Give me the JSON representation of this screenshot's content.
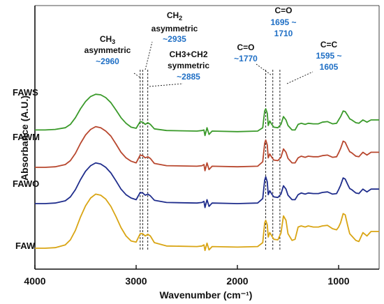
{
  "chart_data": {
    "type": "line",
    "xlabel": "Wavenumber (cm⁻¹)",
    "ylabel": "Absorbance (A.U.)",
    "xlim": [
      4000,
      600
    ],
    "x_ticks": [
      {
        "value": 4000,
        "label": "4000"
      },
      {
        "value": 3000,
        "label": "3000"
      },
      {
        "value": 2000,
        "label": "2000"
      },
      {
        "value": 1000,
        "label": "1000"
      }
    ],
    "grid": false,
    "series": [
      {
        "name": "FAWS",
        "color": "#3a9a2a",
        "points": [
          [
            4000,
            2.12
          ],
          [
            3900,
            2.12
          ],
          [
            3800,
            2.13
          ],
          [
            3700,
            2.16
          ],
          [
            3650,
            2.22
          ],
          [
            3600,
            2.34
          ],
          [
            3550,
            2.5
          ],
          [
            3500,
            2.63
          ],
          [
            3450,
            2.72
          ],
          [
            3400,
            2.76
          ],
          [
            3350,
            2.75
          ],
          [
            3300,
            2.7
          ],
          [
            3250,
            2.61
          ],
          [
            3200,
            2.48
          ],
          [
            3150,
            2.34
          ],
          [
            3100,
            2.24
          ],
          [
            3050,
            2.17
          ],
          [
            3000,
            2.15
          ],
          [
            2960,
            2.27
          ],
          [
            2935,
            2.26
          ],
          [
            2910,
            2.22
          ],
          [
            2885,
            2.25
          ],
          [
            2860,
            2.22
          ],
          [
            2820,
            2.14
          ],
          [
            2700,
            2.11
          ],
          [
            2400,
            2.1
          ],
          [
            2350,
            2.11
          ],
          [
            2330,
            2.12
          ],
          [
            2320,
            2.02
          ],
          [
            2300,
            2.16
          ],
          [
            2280,
            2.04
          ],
          [
            2250,
            2.1
          ],
          [
            2000,
            2.09
          ],
          [
            1800,
            2.1
          ],
          [
            1750,
            2.16
          ],
          [
            1730,
            2.46
          ],
          [
            1720,
            2.5
          ],
          [
            1705,
            2.42
          ],
          [
            1695,
            2.2
          ],
          [
            1680,
            2.28
          ],
          [
            1660,
            2.22
          ],
          [
            1640,
            2.17
          ],
          [
            1600,
            2.16
          ],
          [
            1570,
            2.22
          ],
          [
            1545,
            2.36
          ],
          [
            1520,
            2.3
          ],
          [
            1500,
            2.2
          ],
          [
            1460,
            2.12
          ],
          [
            1430,
            2.12
          ],
          [
            1400,
            2.22
          ],
          [
            1370,
            2.24
          ],
          [
            1330,
            2.22
          ],
          [
            1300,
            2.24
          ],
          [
            1250,
            2.23
          ],
          [
            1200,
            2.23
          ],
          [
            1160,
            2.26
          ],
          [
            1110,
            2.27
          ],
          [
            1060,
            2.23
          ],
          [
            1020,
            2.24
          ],
          [
            1000,
            2.3
          ],
          [
            980,
            2.36
          ],
          [
            955,
            2.46
          ],
          [
            935,
            2.45
          ],
          [
            910,
            2.38
          ],
          [
            890,
            2.32
          ],
          [
            870,
            2.3
          ],
          [
            830,
            2.25
          ],
          [
            800,
            2.24
          ],
          [
            760,
            2.3
          ],
          [
            720,
            2.26
          ],
          [
            680,
            2.3
          ],
          [
            650,
            2.3
          ],
          [
            600,
            2.3
          ]
        ]
      },
      {
        "name": "FAWM",
        "color": "#b8472e",
        "points": [
          [
            4000,
            1.45
          ],
          [
            3900,
            1.45
          ],
          [
            3800,
            1.46
          ],
          [
            3700,
            1.5
          ],
          [
            3650,
            1.57
          ],
          [
            3600,
            1.7
          ],
          [
            3550,
            1.88
          ],
          [
            3500,
            2.03
          ],
          [
            3450,
            2.13
          ],
          [
            3400,
            2.18
          ],
          [
            3350,
            2.16
          ],
          [
            3300,
            2.1
          ],
          [
            3250,
            2.01
          ],
          [
            3200,
            1.87
          ],
          [
            3150,
            1.72
          ],
          [
            3100,
            1.62
          ],
          [
            3050,
            1.56
          ],
          [
            3000,
            1.53
          ],
          [
            2960,
            1.67
          ],
          [
            2935,
            1.66
          ],
          [
            2910,
            1.62
          ],
          [
            2885,
            1.64
          ],
          [
            2860,
            1.61
          ],
          [
            2820,
            1.52
          ],
          [
            2700,
            1.48
          ],
          [
            2400,
            1.47
          ],
          [
            2350,
            1.48
          ],
          [
            2330,
            1.5
          ],
          [
            2320,
            1.39
          ],
          [
            2300,
            1.53
          ],
          [
            2280,
            1.41
          ],
          [
            2250,
            1.47
          ],
          [
            2000,
            1.46
          ],
          [
            1800,
            1.47
          ],
          [
            1750,
            1.55
          ],
          [
            1730,
            1.88
          ],
          [
            1720,
            1.94
          ],
          [
            1705,
            1.85
          ],
          [
            1695,
            1.62
          ],
          [
            1680,
            1.69
          ],
          [
            1660,
            1.63
          ],
          [
            1640,
            1.58
          ],
          [
            1600,
            1.57
          ],
          [
            1570,
            1.63
          ],
          [
            1545,
            1.78
          ],
          [
            1520,
            1.72
          ],
          [
            1500,
            1.61
          ],
          [
            1460,
            1.53
          ],
          [
            1430,
            1.53
          ],
          [
            1400,
            1.62
          ],
          [
            1370,
            1.65
          ],
          [
            1330,
            1.63
          ],
          [
            1300,
            1.65
          ],
          [
            1250,
            1.64
          ],
          [
            1200,
            1.64
          ],
          [
            1160,
            1.66
          ],
          [
            1110,
            1.67
          ],
          [
            1060,
            1.63
          ],
          [
            1020,
            1.64
          ],
          [
            1000,
            1.71
          ],
          [
            980,
            1.79
          ],
          [
            955,
            1.92
          ],
          [
            935,
            1.9
          ],
          [
            910,
            1.8
          ],
          [
            890,
            1.73
          ],
          [
            870,
            1.71
          ],
          [
            830,
            1.65
          ],
          [
            800,
            1.64
          ],
          [
            760,
            1.72
          ],
          [
            720,
            1.67
          ],
          [
            680,
            1.72
          ],
          [
            650,
            1.72
          ],
          [
            600,
            1.72
          ]
        ]
      },
      {
        "name": "FAWO",
        "color": "#1f2d8c",
        "points": [
          [
            4000,
            0.8
          ],
          [
            3900,
            0.8
          ],
          [
            3800,
            0.81
          ],
          [
            3700,
            0.85
          ],
          [
            3650,
            0.92
          ],
          [
            3600,
            1.05
          ],
          [
            3550,
            1.23
          ],
          [
            3500,
            1.38
          ],
          [
            3450,
            1.48
          ],
          [
            3400,
            1.53
          ],
          [
            3350,
            1.51
          ],
          [
            3300,
            1.45
          ],
          [
            3250,
            1.35
          ],
          [
            3200,
            1.21
          ],
          [
            3150,
            1.06
          ],
          [
            3100,
            0.96
          ],
          [
            3050,
            0.9
          ],
          [
            3000,
            0.87
          ],
          [
            2960,
            1.0
          ],
          [
            2935,
            0.99
          ],
          [
            2910,
            0.95
          ],
          [
            2885,
            0.97
          ],
          [
            2860,
            0.94
          ],
          [
            2820,
            0.86
          ],
          [
            2700,
            0.82
          ],
          [
            2400,
            0.81
          ],
          [
            2350,
            0.82
          ],
          [
            2330,
            0.84
          ],
          [
            2320,
            0.73
          ],
          [
            2300,
            0.87
          ],
          [
            2280,
            0.75
          ],
          [
            2250,
            0.81
          ],
          [
            2000,
            0.8
          ],
          [
            1800,
            0.81
          ],
          [
            1750,
            0.89
          ],
          [
            1730,
            1.22
          ],
          [
            1720,
            1.28
          ],
          [
            1705,
            1.19
          ],
          [
            1695,
            0.96
          ],
          [
            1680,
            1.03
          ],
          [
            1660,
            0.97
          ],
          [
            1640,
            0.92
          ],
          [
            1600,
            0.91
          ],
          [
            1570,
            0.97
          ],
          [
            1545,
            1.12
          ],
          [
            1520,
            1.06
          ],
          [
            1500,
            0.95
          ],
          [
            1460,
            0.87
          ],
          [
            1430,
            0.87
          ],
          [
            1400,
            0.96
          ],
          [
            1370,
            0.99
          ],
          [
            1330,
            0.97
          ],
          [
            1300,
            0.99
          ],
          [
            1250,
            0.98
          ],
          [
            1200,
            0.98
          ],
          [
            1160,
            1.0
          ],
          [
            1110,
            1.01
          ],
          [
            1060,
            0.97
          ],
          [
            1020,
            0.98
          ],
          [
            1000,
            1.05
          ],
          [
            980,
            1.13
          ],
          [
            955,
            1.26
          ],
          [
            935,
            1.24
          ],
          [
            910,
            1.14
          ],
          [
            890,
            1.07
          ],
          [
            870,
            1.05
          ],
          [
            830,
            0.99
          ],
          [
            800,
            0.98
          ],
          [
            760,
            1.06
          ],
          [
            720,
            1.01
          ],
          [
            680,
            1.06
          ],
          [
            650,
            1.06
          ],
          [
            600,
            1.06
          ]
        ]
      },
      {
        "name": "FAW",
        "color": "#d9a514",
        "points": [
          [
            4000,
            0.0
          ],
          [
            3900,
            0.0
          ],
          [
            3800,
            0.01
          ],
          [
            3700,
            0.06
          ],
          [
            3650,
            0.15
          ],
          [
            3600,
            0.32
          ],
          [
            3550,
            0.56
          ],
          [
            3500,
            0.76
          ],
          [
            3450,
            0.9
          ],
          [
            3400,
            0.97
          ],
          [
            3350,
            0.95
          ],
          [
            3300,
            0.88
          ],
          [
            3250,
            0.75
          ],
          [
            3200,
            0.57
          ],
          [
            3150,
            0.37
          ],
          [
            3100,
            0.22
          ],
          [
            3050,
            0.13
          ],
          [
            3000,
            0.11
          ],
          [
            2960,
            0.26
          ],
          [
            2935,
            0.26
          ],
          [
            2910,
            0.22
          ],
          [
            2885,
            0.25
          ],
          [
            2860,
            0.22
          ],
          [
            2820,
            0.1
          ],
          [
            2700,
            0.04
          ],
          [
            2400,
            0.03
          ],
          [
            2350,
            0.04
          ],
          [
            2330,
            0.06
          ],
          [
            2320,
            -0.04
          ],
          [
            2300,
            0.09
          ],
          [
            2280,
            -0.03
          ],
          [
            2250,
            0.03
          ],
          [
            2000,
            0.02
          ],
          [
            1800,
            0.03
          ],
          [
            1750,
            0.1
          ],
          [
            1730,
            0.45
          ],
          [
            1720,
            0.5
          ],
          [
            1705,
            0.42
          ],
          [
            1695,
            0.2
          ],
          [
            1680,
            0.28
          ],
          [
            1660,
            0.22
          ],
          [
            1640,
            0.16
          ],
          [
            1600,
            0.15
          ],
          [
            1570,
            0.27
          ],
          [
            1545,
            0.58
          ],
          [
            1520,
            0.5
          ],
          [
            1500,
            0.26
          ],
          [
            1460,
            0.14
          ],
          [
            1430,
            0.16
          ],
          [
            1400,
            0.38
          ],
          [
            1370,
            0.4
          ],
          [
            1330,
            0.38
          ],
          [
            1300,
            0.4
          ],
          [
            1250,
            0.38
          ],
          [
            1200,
            0.38
          ],
          [
            1160,
            0.4
          ],
          [
            1110,
            0.41
          ],
          [
            1060,
            0.35
          ],
          [
            1020,
            0.33
          ],
          [
            1000,
            0.38
          ],
          [
            980,
            0.46
          ],
          [
            955,
            0.62
          ],
          [
            935,
            0.6
          ],
          [
            910,
            0.4
          ],
          [
            890,
            0.26
          ],
          [
            870,
            0.22
          ],
          [
            830,
            0.14
          ],
          [
            800,
            0.12
          ],
          [
            760,
            0.28
          ],
          [
            720,
            0.22
          ],
          [
            680,
            0.3
          ],
          [
            650,
            0.3
          ],
          [
            600,
            0.3
          ]
        ]
      }
    ],
    "series_labels": {
      "FAWS": "FAWS",
      "FAWM": "FAWM",
      "FAWO": "FAWO",
      "FAW": "FAW"
    },
    "annotations": {
      "ch3_asym": {
        "line1": "CH",
        "sub": "3",
        "line2": "asymmetric",
        "value": "~2960"
      },
      "ch2_asym": {
        "line1": "CH",
        "sub": "2",
        "line2": "asymmetric",
        "value": "~2935"
      },
      "ch3ch2_sym": {
        "line1": "CH3+CH2",
        "line2": "symmetric",
        "value": "~2885"
      },
      "co_1770": {
        "line1": "C=O",
        "value": "~1770"
      },
      "co_1695": {
        "line1": "C=O",
        "value1": "1695 ~",
        "value2": "1710"
      },
      "cc_1595": {
        "line1": "C=C",
        "value1": "1595 ~",
        "value2": "1605"
      }
    },
    "marker_lines": [
      2960,
      2935,
      2885,
      1720,
      1650,
      1580
    ]
  }
}
